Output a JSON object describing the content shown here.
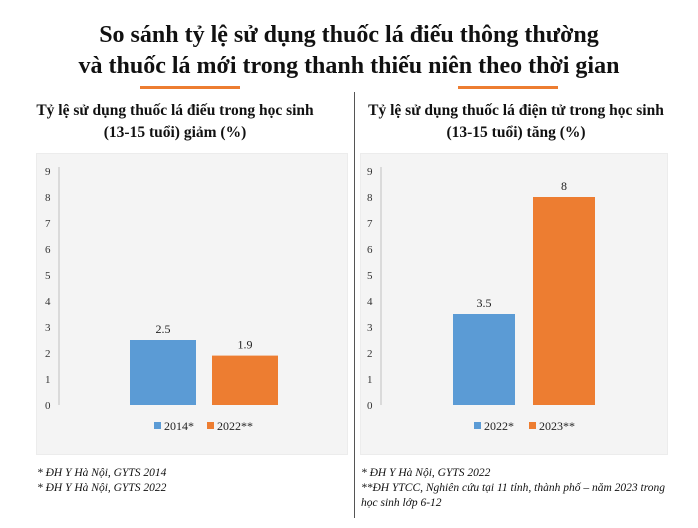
{
  "title": {
    "line1": "So sánh tỷ lệ sử dụng thuốc lá điếu thông thường",
    "line2": "và thuốc lá mới trong thanh thiếu niên theo thời gian"
  },
  "colors": {
    "accent": "#ed7d31",
    "blue": "#5b9bd5",
    "orange": "#ed7d31"
  },
  "chart_data": [
    {
      "type": "bar",
      "title": "Tỷ lệ sử dụng thuốc lá điếu trong học sinh (13-15 tuổi) giảm (%)",
      "title_lines": [
        "Tỷ lệ sử dụng thuốc lá điếu trong học sinh",
        "(13-15 tuổi) giảm (%)"
      ],
      "series": [
        {
          "name": "2014*",
          "value": 2.5,
          "color": "#5b9bd5"
        },
        {
          "name": "2022**",
          "value": 1.9,
          "color": "#ed7d31"
        }
      ],
      "ylim": [
        0,
        9
      ],
      "yticks": [
        0,
        1,
        2,
        3,
        4,
        5,
        6,
        7,
        8,
        9
      ],
      "grid": false,
      "legend": "bottom",
      "notes": [
        "* ĐH Y Hà Nội, GYTS 2014",
        "* ĐH Y Hà Nội, GYTS 2022"
      ]
    },
    {
      "type": "bar",
      "title": "Tỷ lệ sử dụng thuốc lá điện tử trong học sinh (13-15 tuổi) tăng (%)",
      "title_lines": [
        "Tỷ lệ sử dụng thuốc lá điện tử trong học sinh",
        "(13-15 tuổi) tăng (%)"
      ],
      "series": [
        {
          "name": "2022*",
          "value": 3.5,
          "color": "#5b9bd5"
        },
        {
          "name": "2023**",
          "value": 8,
          "color": "#ed7d31"
        }
      ],
      "ylim": [
        0,
        9
      ],
      "yticks": [
        0,
        1,
        2,
        3,
        4,
        5,
        6,
        7,
        8,
        9
      ],
      "grid": false,
      "legend": "bottom",
      "notes": [
        "* ĐH Y Hà Nội, GYTS 2022",
        "**ĐH YTCC, Nghiên cứu tại 11 tỉnh, thành phố – năm 2023 trong",
        "học sinh lớp 6-12"
      ]
    }
  ]
}
